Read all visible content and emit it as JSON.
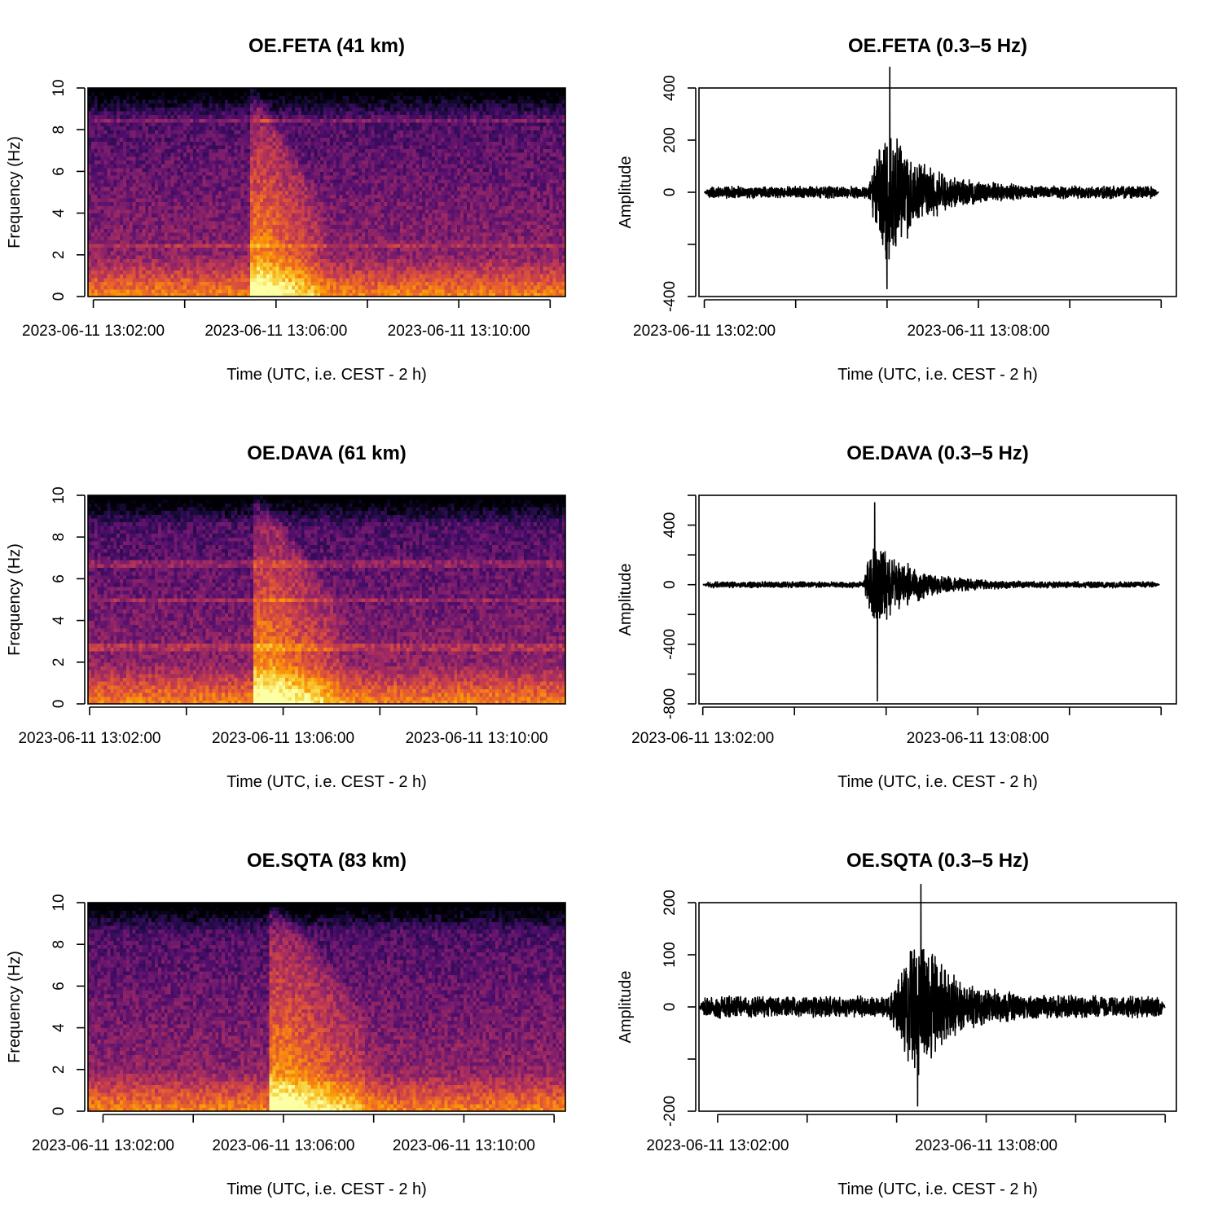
{
  "figure": {
    "panels": [
      {
        "id": "feta-spec",
        "title": "OE.FETA (41 km)"
      },
      {
        "id": "feta-trace",
        "title": "OE.FETA (0.3–5 Hz)"
      },
      {
        "id": "dava-spec",
        "title": "OE.DAVA (61 km)"
      },
      {
        "id": "dava-trace",
        "title": "OE.DAVA (0.3–5 Hz)"
      },
      {
        "id": "sqta-spec",
        "title": "OE.SQTA (83 km)"
      },
      {
        "id": "sqta-trace",
        "title": "OE.SQTA (0.3–5 Hz)"
      }
    ]
  },
  "colors": {
    "colormap": [
      "#000004",
      "#1b0c41",
      "#4a0c6b",
      "#781c6d",
      "#a52c60",
      "#cf4446",
      "#ed6925",
      "#fb9b06",
      "#f7d13d",
      "#fcffa4"
    ],
    "trace": "#000000"
  },
  "chart_data": [
    {
      "type": "heatmap",
      "station": "OE.FETA",
      "title": "OE.FETA (41 km)",
      "xlabel": "Time (UTC, i.e. CEST - 2 h)",
      "ylabel": "Frequency (Hz)",
      "x_start": "2023-06-11 13:01:53",
      "x_end": "2023-06-11 13:12:20",
      "xlim": [
        "2023-06-11 13:01:53",
        "2023-06-11 13:12:20"
      ],
      "ylim": [
        0,
        10
      ],
      "x_ticks": [
        "2023-06-11 13:02:00",
        "2023-06-11 13:04:00",
        "2023-06-11 13:06:00",
        "2023-06-11 13:08:00",
        "2023-06-11 13:10:00",
        "2023-06-11 13:12:00"
      ],
      "x_tick_labels": [
        "2023-06-11 13:02:00",
        "",
        "2023-06-11 13:06:00",
        "",
        "2023-06-11 13:10:00",
        ""
      ],
      "y_ticks": [
        0,
        2,
        4,
        6,
        8,
        10
      ],
      "y_tick_labels": [
        "0",
        "2",
        "4",
        "6",
        "8",
        "10"
      ],
      "event_start": "2023-06-11 13:05:27",
      "event_end": "2023-06-11 13:07:00",
      "spectral_lines_hz": [
        8.5,
        2.5
      ]
    },
    {
      "type": "line",
      "station": "OE.FETA",
      "title": "OE.FETA (0.3–5 Hz)",
      "xlabel": "Time (UTC, i.e. CEST - 2 h)",
      "ylabel": "Amplitude",
      "xlim": [
        "2023-06-11 13:01:53",
        "2023-06-11 13:12:20"
      ],
      "ylim": [
        -400,
        400
      ],
      "x_ticks": [
        "2023-06-11 13:02:00",
        "2023-06-11 13:04:00",
        "2023-06-11 13:06:00",
        "2023-06-11 13:08:00",
        "2023-06-11 13:10:00",
        "2023-06-11 13:12:00"
      ],
      "x_tick_labels": [
        "2023-06-11 13:02:00",
        "",
        "",
        "2023-06-11 13:08:00",
        "",
        ""
      ],
      "y_ticks": [
        -400,
        -200,
        0,
        200,
        400
      ],
      "y_tick_labels": [
        "-400",
        "",
        "0",
        "200",
        "400"
      ],
      "trace_start": "2023-06-11 13:02:00",
      "trace_end": "2023-06-11 13:11:57",
      "noise_amplitude": 25,
      "event_onset": "2023-06-11 13:05:35",
      "peak_time": "2023-06-11 13:06:00",
      "max_amplitude": 480,
      "min_amplitude": -370
    },
    {
      "type": "heatmap",
      "station": "OE.DAVA",
      "title": "OE.DAVA (61 km)",
      "xlabel": "Time (UTC, i.e. CEST - 2 h)",
      "ylabel": "Frequency (Hz)",
      "x_start": "2023-06-11 13:01:58",
      "x_end": "2023-06-11 13:11:50",
      "xlim": [
        "2023-06-11 13:01:58",
        "2023-06-11 13:11:50"
      ],
      "ylim": [
        0,
        10
      ],
      "x_ticks": [
        "2023-06-11 13:02:00",
        "2023-06-11 13:04:00",
        "2023-06-11 13:06:00",
        "2023-06-11 13:08:00",
        "2023-06-11 13:10:00"
      ],
      "x_tick_labels": [
        "2023-06-11 13:02:00",
        "",
        "2023-06-11 13:06:00",
        "",
        "2023-06-11 13:10:00"
      ],
      "y_ticks": [
        0,
        2,
        4,
        6,
        8,
        10
      ],
      "y_tick_labels": [
        "0",
        "2",
        "4",
        "6",
        "8",
        "10"
      ],
      "event_start": "2023-06-11 13:05:25",
      "event_end": "2023-06-11 13:07:10",
      "spectral_lines_hz": [
        5.0,
        2.7,
        6.7
      ]
    },
    {
      "type": "line",
      "station": "OE.DAVA",
      "title": "OE.DAVA (0.3–5 Hz)",
      "xlabel": "Time (UTC, i.e. CEST - 2 h)",
      "ylabel": "Amplitude",
      "xlim": [
        "2023-06-11 13:01:55",
        "2023-06-11 13:12:20"
      ],
      "ylim": [
        -800,
        600
      ],
      "x_ticks": [
        "2023-06-11 13:02:00",
        "2023-06-11 13:04:00",
        "2023-06-11 13:06:00",
        "2023-06-11 13:08:00",
        "2023-06-11 13:10:00",
        "2023-06-11 13:12:00"
      ],
      "x_tick_labels": [
        "2023-06-11 13:02:00",
        "",
        "",
        "2023-06-11 13:08:00",
        "",
        ""
      ],
      "y_ticks": [
        -800,
        -600,
        -400,
        -200,
        0,
        200,
        400,
        600
      ],
      "y_tick_labels": [
        "-800",
        "",
        "-400",
        "",
        "0",
        "",
        "400",
        ""
      ],
      "trace_start": "2023-06-11 13:02:00",
      "trace_end": "2023-06-11 13:11:58",
      "noise_amplitude": 22,
      "event_onset": "2023-06-11 13:05:30",
      "peak_time": "2023-06-11 13:05:45",
      "max_amplitude": 550,
      "min_amplitude": -780
    },
    {
      "type": "heatmap",
      "station": "OE.SQTA",
      "title": "OE.SQTA (83 km)",
      "xlabel": "Time (UTC, i.e. CEST - 2 h)",
      "ylabel": "Frequency (Hz)",
      "x_start": "2023-06-11 13:01:40",
      "x_end": "2023-06-11 13:12:15",
      "xlim": [
        "2023-06-11 13:01:40",
        "2023-06-11 13:12:15"
      ],
      "ylim": [
        0,
        10
      ],
      "x_ticks": [
        "2023-06-11 13:02:00",
        "2023-06-11 13:04:00",
        "2023-06-11 13:06:00",
        "2023-06-11 13:08:00",
        "2023-06-11 13:10:00",
        "2023-06-11 13:12:00"
      ],
      "x_tick_labels": [
        "2023-06-11 13:02:00",
        "",
        "2023-06-11 13:06:00",
        "",
        "2023-06-11 13:10:00",
        ""
      ],
      "y_ticks": [
        0,
        2,
        4,
        6,
        8,
        10
      ],
      "y_tick_labels": [
        "0",
        "2",
        "4",
        "6",
        "8",
        "10"
      ],
      "event_start": "2023-06-11 13:05:40",
      "event_end": "2023-06-11 13:07:50",
      "spectral_lines_hz": []
    },
    {
      "type": "line",
      "station": "OE.SQTA",
      "title": "OE.SQTA (0.3–5 Hz)",
      "xlabel": "Time (UTC, i.e. CEST - 2 h)",
      "ylabel": "Amplitude",
      "xlim": [
        "2023-06-11 13:01:35",
        "2023-06-11 13:12:15"
      ],
      "ylim": [
        -200,
        200
      ],
      "x_ticks": [
        "2023-06-11 13:02:00",
        "2023-06-11 13:04:00",
        "2023-06-11 13:06:00",
        "2023-06-11 13:08:00",
        "2023-06-11 13:10:00",
        "2023-06-11 13:12:00"
      ],
      "x_tick_labels": [
        "2023-06-11 13:02:00",
        "",
        "",
        "2023-06-11 13:08:00",
        "",
        ""
      ],
      "y_ticks": [
        -200,
        -100,
        0,
        100,
        200
      ],
      "y_tick_labels": [
        "-200",
        "",
        "0",
        "100",
        "200"
      ],
      "trace_start": "2023-06-11 13:01:35",
      "trace_end": "2023-06-11 13:12:00",
      "noise_amplitude": 22,
      "event_onset": "2023-06-11 13:05:50",
      "peak_time": "2023-06-11 13:06:30",
      "max_amplitude": 235,
      "min_amplitude": -190
    }
  ]
}
